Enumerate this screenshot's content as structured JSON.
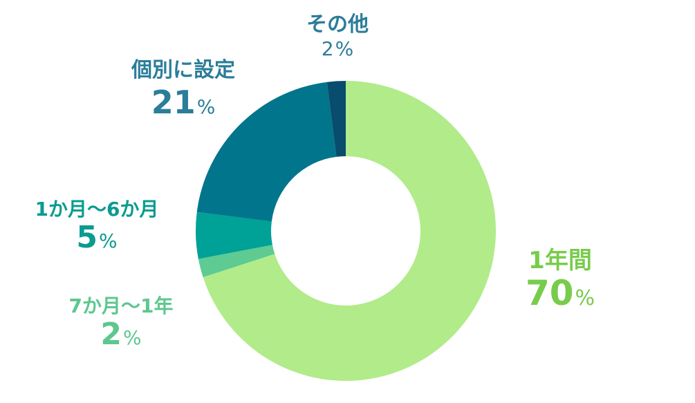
{
  "chart_data": {
    "type": "pie",
    "donut": true,
    "slices": [
      {
        "label": "1年間",
        "value": 70,
        "value_text": "70",
        "color": "#b1eb8a",
        "label_color": "#78cc4c"
      },
      {
        "label": "7か月～1年",
        "value": 2,
        "value_text": "2",
        "color": "#5dcb92",
        "label_color": "#5ec78f"
      },
      {
        "label": "1か月～6か月",
        "value": 5,
        "value_text": "5",
        "color": "#00a196",
        "label_color": "#0b9b90"
      },
      {
        "label": "個別に設定",
        "value": 21,
        "value_text": "21",
        "color": "#00758b",
        "label_color": "#2b7d99"
      },
      {
        "label": "その他",
        "value": 2,
        "value_text": "2",
        "color": "#084c6e",
        "label_color": "#2b7d99"
      }
    ],
    "unit": "%"
  }
}
